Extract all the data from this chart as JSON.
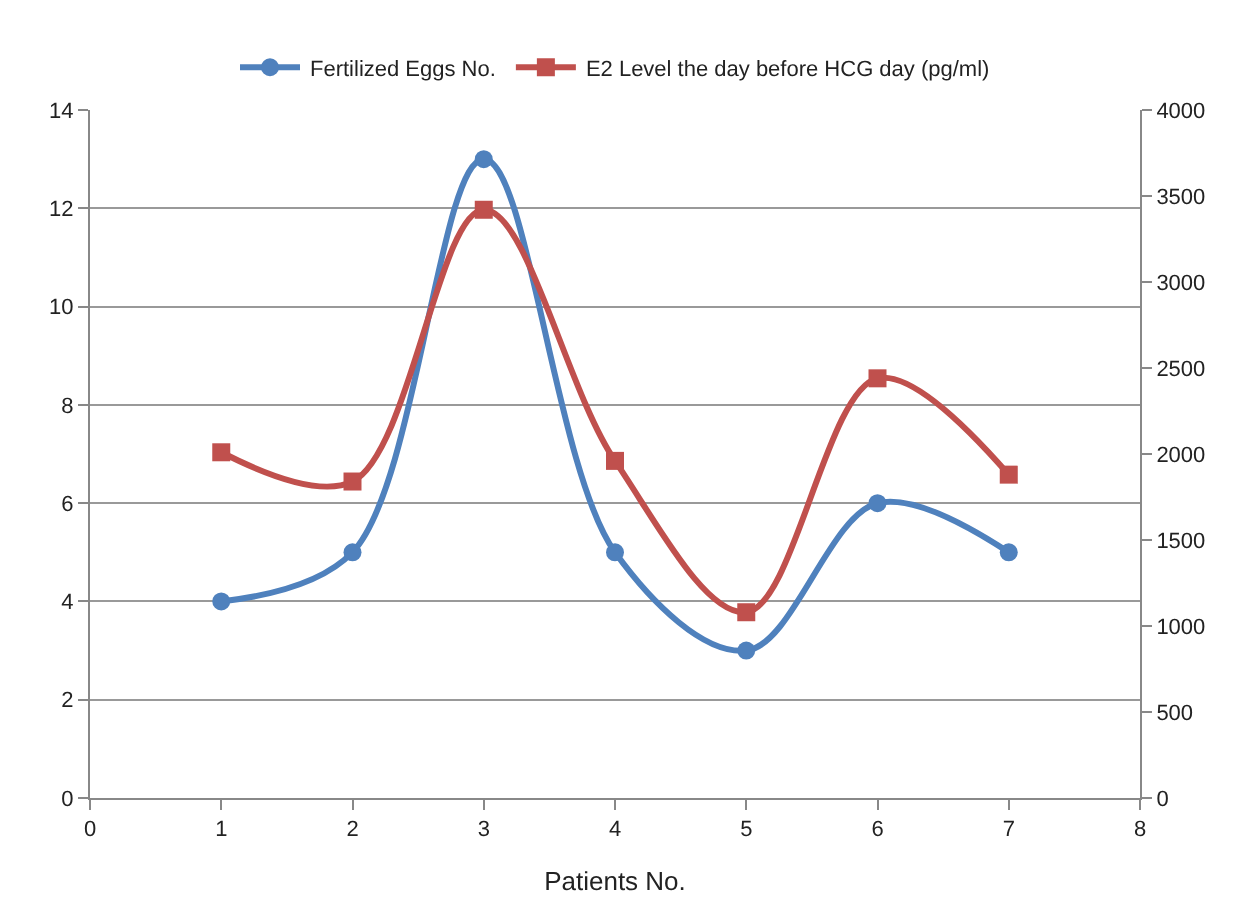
{
  "chart_data": {
    "type": "line",
    "xlabel": "Patients No.",
    "x": [
      1,
      2,
      3,
      4,
      5,
      6,
      7
    ],
    "series": [
      {
        "name": "Fertilized Eggs No.",
        "color": "#4f81bd",
        "marker": "circle",
        "values": [
          4,
          5,
          13,
          5,
          3,
          6,
          5
        ]
      },
      {
        "name": "E2 Level the day before HCG day (pg/ml)",
        "color": "#c0504d",
        "marker": "square",
        "axis": "y2",
        "values": [
          2010,
          1840,
          3420,
          1960,
          1080,
          2440,
          1880
        ]
      }
    ],
    "xlim": [
      0,
      8
    ],
    "xticks": [
      0,
      1,
      2,
      3,
      4,
      5,
      6,
      7,
      8
    ],
    "ylim": [
      0,
      14
    ],
    "yticks": [
      0,
      2,
      4,
      6,
      8,
      10,
      12,
      14
    ],
    "y2lim": [
      0,
      4000
    ],
    "y2ticks": [
      0,
      500,
      1000,
      1500,
      2000,
      2500,
      3000,
      3500,
      4000
    ],
    "grid": "y",
    "legend": "top"
  }
}
